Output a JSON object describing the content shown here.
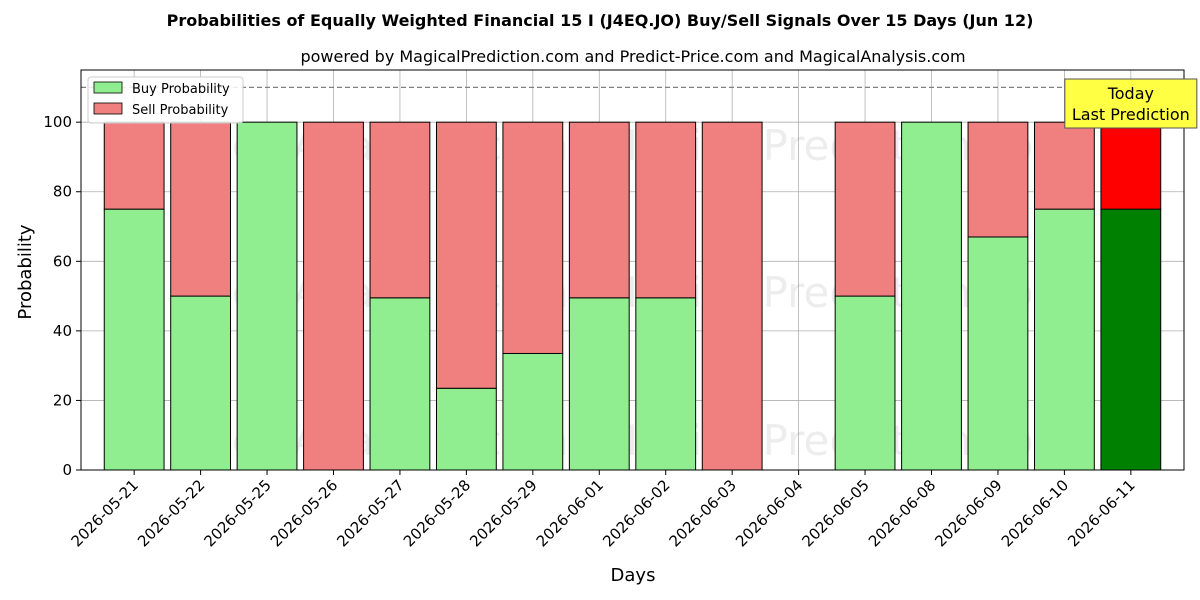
{
  "chart_data": {
    "type": "bar",
    "title": "Probabilities of Equally Weighted Financial 15 I (J4EQ.JO) Buy/Sell Signals Over 15 Days (Jun 12)",
    "subtitle": "powered by MagicalPrediction.com and Predict-Price.com and MagicalAnalysis.com",
    "xlabel": "Days",
    "ylabel": "Probability",
    "ylim": [
      0,
      115
    ],
    "yticks": [
      0,
      20,
      40,
      60,
      80,
      100
    ],
    "reference_line": 110,
    "grid": true,
    "legend_position": "top-left",
    "categories": [
      "2026-05-21",
      "2026-05-22",
      "2026-05-25",
      "2026-05-26",
      "2026-05-27",
      "2026-05-28",
      "2026-05-29",
      "2026-06-01",
      "2026-06-02",
      "2026-06-03",
      "2026-06-04",
      "2026-06-05",
      "2026-06-08",
      "2026-06-09",
      "2026-06-10",
      "2026-06-11"
    ],
    "series": [
      {
        "name": "Buy Probability",
        "color": "#90ee90",
        "values": [
          75,
          50,
          100,
          0,
          49.5,
          23.5,
          33.5,
          49.5,
          49.5,
          0,
          0,
          50,
          100,
          67,
          75,
          75
        ]
      },
      {
        "name": "Sell Probability",
        "color": "#f08080",
        "values": [
          25,
          50,
          0,
          100,
          50.5,
          76.5,
          66.5,
          50.5,
          50.5,
          100,
          0,
          50,
          0,
          33,
          25,
          25
        ]
      }
    ],
    "highlight": {
      "index": 15,
      "buy_color": "#008000",
      "sell_color": "#ff0000"
    },
    "annotation": {
      "lines": [
        "Today",
        "Last Prediction"
      ],
      "background": "#ffff44"
    },
    "watermarks": [
      "MagicalAnalysis.com",
      "MagicalPrediction.com"
    ]
  }
}
